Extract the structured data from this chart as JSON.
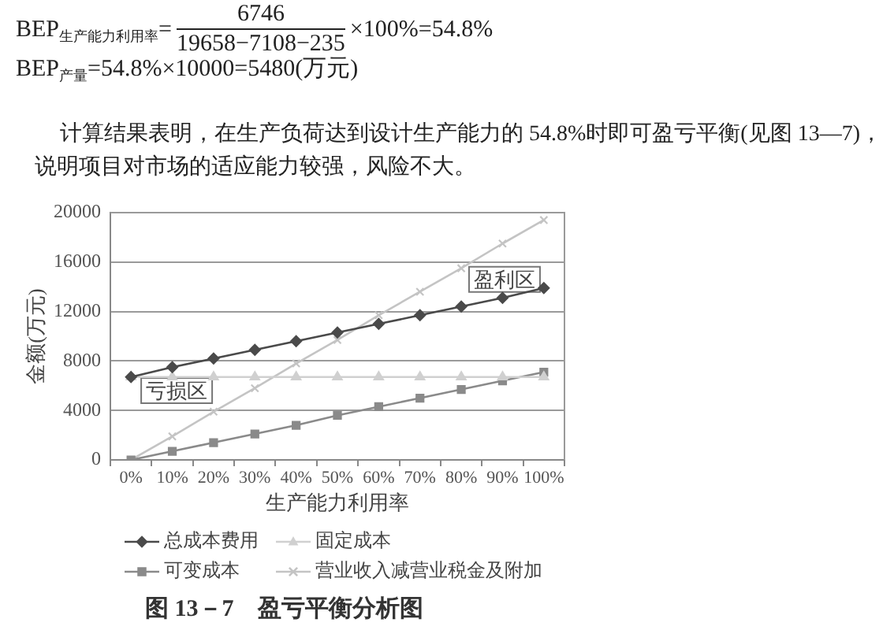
{
  "chart_data": {
    "type": "line",
    "title": "图 13－7　盈亏平衡分析图",
    "xlabel": "生产能力利用率",
    "ylabel": "金额(万元)",
    "categories": [
      "0%",
      "10%",
      "20%",
      "30%",
      "40%",
      "50%",
      "60%",
      "70%",
      "80%",
      "90%",
      "100%"
    ],
    "series": [
      {
        "name": "总成本费用",
        "color": "#4a4a4a",
        "marker": "diamond",
        "values": [
          6700,
          7500,
          8200,
          8900,
          9600,
          10300,
          11000,
          11700,
          12400,
          13100,
          13900
        ]
      },
      {
        "name": "固定成本",
        "color": "#d0d0d0",
        "marker": "triangle",
        "values": [
          6700,
          6700,
          6700,
          6700,
          6700,
          6700,
          6700,
          6700,
          6700,
          6700,
          6700
        ]
      },
      {
        "name": "可变成本",
        "color": "#8a8a8a",
        "marker": "square",
        "values": [
          0,
          700,
          1400,
          2100,
          2800,
          3600,
          4300,
          5000,
          5700,
          6400,
          7100
        ]
      },
      {
        "name": "营业收入减营业税金及附加",
        "color": "#c4c4c4",
        "marker": "cross",
        "values": [
          0,
          1900,
          3900,
          5800,
          7800,
          9700,
          11700,
          13600,
          15500,
          17500,
          19400
        ]
      }
    ],
    "ylim": [
      0,
      20000
    ],
    "yticks": [
      0,
      4000,
      8000,
      12000,
      16000,
      20000
    ],
    "grid": "y",
    "legend": "bottom",
    "line_style": "solid",
    "annotations": [
      "BEP$_{生产能力利用率}$=",
      "6746",
      "19658−7108−235",
      "×100%=54.8%",
      "BEP$_{产量}$=54.8%×10000=5480(万元)",
      "计算结果表明，在生产负荷达到设计生产能力的 54.8%时即可盈亏平衡(见图 13—7)，说明项目对市场的适应能力较强，风险不大。",
      "亏损区",
      "盈利区"
    ]
  }
}
